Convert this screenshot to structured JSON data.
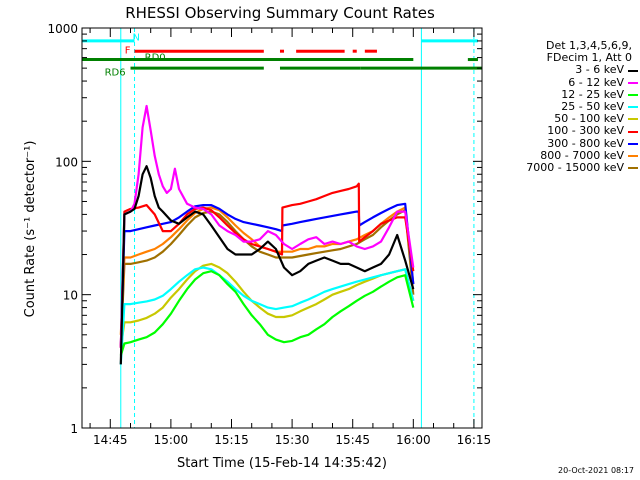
{
  "chart_data": {
    "type": "line",
    "title": "RHESSI Observing Summary Count Rates",
    "xlabel": "Start Time (15-Feb-14 14:35:42)",
    "ylabel": "Count Rate (s⁻¹ detector⁻¹)",
    "yscale": "log",
    "ylim": [
      1,
      1000
    ],
    "xlim_minutes": [
      38,
      137
    ],
    "x_unit": "minutes after 14:00 UT",
    "x_ticks": [
      {
        "value": 45,
        "label": "14:45"
      },
      {
        "value": 60,
        "label": "15:00"
      },
      {
        "value": 75,
        "label": "15:15"
      },
      {
        "value": 90,
        "label": "15:30"
      },
      {
        "value": 105,
        "label": "15:45"
      },
      {
        "value": 120,
        "label": "16:00"
      },
      {
        "value": 135,
        "label": "16:15"
      }
    ],
    "y_ticks": [
      {
        "value": 1,
        "label": "1"
      },
      {
        "value": 10,
        "label": "10"
      },
      {
        "value": 100,
        "label": "100"
      },
      {
        "value": 1000,
        "label": "1000"
      }
    ],
    "legend_header": [
      "Det 1,3,4,5,6,9,",
      "FDecim 1, Att 0"
    ],
    "legend_position": "right-outside",
    "series": [
      {
        "name": "3 - 6 keV",
        "color": "#000000",
        "x": [
          47.6,
          48.5,
          50,
          51,
          52,
          53,
          54,
          55,
          56,
          57,
          58,
          60,
          62,
          64,
          66,
          68,
          70,
          72,
          74,
          76,
          78,
          80,
          82,
          84,
          86,
          88,
          90,
          92,
          94,
          96,
          98,
          100,
          102,
          104,
          106,
          108,
          110,
          112,
          114,
          116,
          118,
          120
        ],
        "y": [
          3,
          40,
          42,
          44,
          55,
          80,
          92,
          75,
          55,
          45,
          42,
          36,
          34,
          38,
          42,
          40,
          33,
          27,
          22,
          20,
          20,
          20,
          22,
          25,
          22,
          16,
          14,
          15,
          17,
          18,
          19,
          18,
          17,
          17,
          16,
          15,
          16,
          17,
          20,
          28,
          18,
          11
        ]
      },
      {
        "name": "6 - 12 keV",
        "color": "#ff00ff",
        "x": [
          47.6,
          48.5,
          50,
          51,
          52,
          53,
          54,
          55,
          56,
          57,
          58,
          59,
          60,
          61,
          62,
          64,
          66,
          68,
          70,
          72,
          74,
          76,
          78,
          80,
          82,
          84,
          86,
          88,
          90,
          92,
          94,
          96,
          98,
          100,
          102,
          104,
          106,
          108,
          110,
          112,
          114,
          116,
          118,
          120
        ],
        "y": [
          4,
          40,
          42,
          48,
          80,
          180,
          260,
          170,
          110,
          80,
          65,
          58,
          62,
          88,
          62,
          48,
          45,
          44,
          40,
          33,
          30,
          28,
          25,
          25,
          26,
          30,
          28,
          24,
          22,
          24,
          26,
          27,
          24,
          25,
          24,
          25,
          23,
          22,
          23,
          25,
          32,
          42,
          42,
          16
        ]
      },
      {
        "name": "12 - 25 keV",
        "color": "#00ff00",
        "x": [
          47.6,
          48.5,
          50,
          52,
          54,
          56,
          58,
          60,
          62,
          64,
          66,
          68,
          70,
          72,
          74,
          76,
          78,
          80,
          82,
          84,
          86,
          88,
          90,
          92,
          94,
          96,
          98,
          100,
          102,
          104,
          106,
          108,
          110,
          112,
          114,
          116,
          118,
          120
        ],
        "y": [
          3.5,
          4.3,
          4.4,
          4.6,
          4.8,
          5.2,
          6,
          7.2,
          9,
          11,
          13,
          14.5,
          15,
          14,
          12,
          10.5,
          8.5,
          7,
          6,
          5,
          4.6,
          4.4,
          4.5,
          4.8,
          5,
          5.5,
          6,
          6.8,
          7.5,
          8.2,
          9,
          9.8,
          10.5,
          11.5,
          12.5,
          13.5,
          14,
          8
        ]
      },
      {
        "name": "25 - 50 keV",
        "color": "#00ffff",
        "x": [
          47.6,
          48.5,
          50,
          52,
          54,
          56,
          58,
          60,
          62,
          64,
          66,
          68,
          70,
          72,
          74,
          76,
          78,
          80,
          82,
          84,
          86,
          88,
          90,
          92,
          94,
          96,
          98,
          100,
          102,
          104,
          106,
          108,
          110,
          112,
          114,
          116,
          118,
          120
        ],
        "y": [
          3,
          8.5,
          8.5,
          8.7,
          8.9,
          9.2,
          9.8,
          11,
          12.5,
          14,
          15.5,
          16,
          15.5,
          14,
          12.5,
          11,
          9.8,
          9,
          8.5,
          8,
          7.8,
          8,
          8.2,
          8.7,
          9.2,
          9.8,
          10.5,
          11,
          11.5,
          12,
          12.5,
          13,
          13.5,
          14,
          14.5,
          15,
          15.5,
          9
        ]
      },
      {
        "name": "50 - 100 keV",
        "color": "#c8c800",
        "x": [
          47.6,
          48.5,
          50,
          52,
          54,
          56,
          58,
          60,
          62,
          64,
          66,
          68,
          70,
          72,
          74,
          76,
          78,
          80,
          82,
          84,
          86,
          88,
          90,
          92,
          94,
          96,
          98,
          100,
          102,
          104,
          106,
          108,
          110,
          112,
          114,
          116,
          118,
          120
        ],
        "y": [
          4,
          6.2,
          6.2,
          6.4,
          6.7,
          7.2,
          8,
          9.5,
          11,
          13,
          15,
          16.5,
          17,
          16,
          14.5,
          12.5,
          10.5,
          9,
          8,
          7.2,
          6.8,
          6.8,
          7,
          7.5,
          8,
          8.5,
          9.2,
          10,
          10.5,
          11,
          11.8,
          12.5,
          13.2,
          14,
          14.5,
          15,
          15.5,
          9
        ]
      },
      {
        "name": "100 - 300 keV",
        "color": "#ff0000",
        "x": [
          47.6,
          48.5,
          50,
          52,
          54,
          56,
          58,
          60,
          62,
          64,
          66,
          68,
          70,
          72,
          74,
          76,
          78,
          80,
          82,
          84,
          86,
          87.5,
          87.6,
          90,
          92,
          94,
          96,
          98,
          100,
          102,
          104,
          106,
          106.5,
          106.6,
          108,
          110,
          112,
          114,
          116,
          118,
          120
        ],
        "y": [
          4,
          42,
          44,
          45,
          47,
          40,
          30,
          30,
          34,
          40,
          44,
          45,
          43,
          38,
          33,
          29,
          26,
          24,
          23,
          22,
          21,
          20,
          45,
          47,
          48,
          50,
          52,
          55,
          58,
          60,
          62,
          65,
          68,
          25,
          27,
          30,
          34,
          36,
          38,
          38,
          15
        ]
      },
      {
        "name": "300 - 800 keV",
        "color": "#0000ff",
        "x": [
          47.6,
          48.5,
          50,
          52,
          54,
          56,
          58,
          60,
          62,
          64,
          66,
          68,
          70,
          72,
          74,
          76,
          78,
          80,
          82,
          84,
          86,
          87.5,
          87.6,
          90,
          92,
          94,
          96,
          98,
          100,
          102,
          104,
          106,
          106.5,
          106.6,
          108,
          110,
          112,
          114,
          116,
          118,
          120
        ],
        "y": [
          4,
          30,
          30,
          31,
          32,
          33,
          34,
          35,
          38,
          42,
          46,
          47,
          47,
          44,
          40,
          37,
          35,
          34,
          33,
          32,
          31,
          30,
          33,
          34,
          35,
          36,
          37,
          38,
          39,
          40,
          41,
          42,
          42,
          33,
          35,
          38,
          41,
          44,
          47,
          48,
          12
        ]
      },
      {
        "name": "800 - 7000 keV",
        "color": "#ff8000",
        "x": [
          47.6,
          48.5,
          50,
          52,
          54,
          56,
          58,
          60,
          62,
          64,
          66,
          68,
          70,
          72,
          74,
          76,
          78,
          80,
          82,
          84,
          86,
          88,
          90,
          92,
          94,
          96,
          98,
          100,
          102,
          104,
          106,
          108,
          110,
          112,
          114,
          116,
          118,
          120
        ],
        "y": [
          5,
          19,
          19,
          20,
          21,
          22,
          24,
          27,
          31,
          36,
          41,
          44,
          45,
          43,
          38,
          33,
          29,
          26,
          23,
          22,
          21,
          21,
          21,
          22,
          22,
          23,
          23,
          24,
          24,
          25,
          26,
          28,
          30,
          34,
          38,
          42,
          45,
          12
        ]
      },
      {
        "name": "7000 - 15000 keV",
        "color": "#a07000",
        "x": [
          47.6,
          48.5,
          50,
          52,
          54,
          56,
          58,
          60,
          62,
          64,
          66,
          68,
          70,
          72,
          74,
          76,
          78,
          80,
          82,
          84,
          86,
          88,
          90,
          92,
          94,
          96,
          98,
          100,
          102,
          104,
          106,
          108,
          110,
          112,
          114,
          116,
          118,
          120
        ],
        "y": [
          4,
          17,
          17,
          17.5,
          18,
          19,
          21,
          24,
          28,
          33,
          38,
          41,
          42,
          40,
          35,
          30,
          26,
          23,
          21,
          20,
          19,
          19,
          19,
          19.5,
          20,
          20.5,
          21,
          21.5,
          22,
          23,
          24,
          26,
          28,
          32,
          36,
          40,
          43,
          10
        ]
      }
    ],
    "state_bars": [
      {
        "label": "N",
        "color": "#00ffff",
        "y": 800,
        "segments": [
          [
            38,
            51
          ],
          [
            122,
            136
          ]
        ]
      },
      {
        "label": "F",
        "color": "#ff0000",
        "y": 670,
        "segments": [
          [
            51,
            83
          ],
          [
            87,
            88
          ],
          [
            91,
            103
          ],
          [
            105,
            106
          ],
          [
            108,
            111
          ]
        ]
      },
      {
        "label": "RD0",
        "color": "#008000",
        "y": 580,
        "segments": [
          [
            38,
            120
          ],
          [
            133.5,
            136
          ]
        ]
      },
      {
        "label": "RD6",
        "color": "#008000",
        "y": 500,
        "segments": [
          [
            50,
            83
          ],
          [
            87,
            107
          ],
          [
            107,
            137
          ]
        ]
      }
    ],
    "vertical_lines": [
      {
        "x": 47.6,
        "color": "#00ffff",
        "style": "solid"
      },
      {
        "x": 51,
        "color": "#00ffff",
        "style": "dashed"
      },
      {
        "x": 122,
        "color": "#00ffff",
        "style": "solid"
      },
      {
        "x": 135,
        "color": "#00ffff",
        "style": "dashed"
      }
    ],
    "grid": false
  },
  "timestamp": "20-Oct-2021 08:17"
}
